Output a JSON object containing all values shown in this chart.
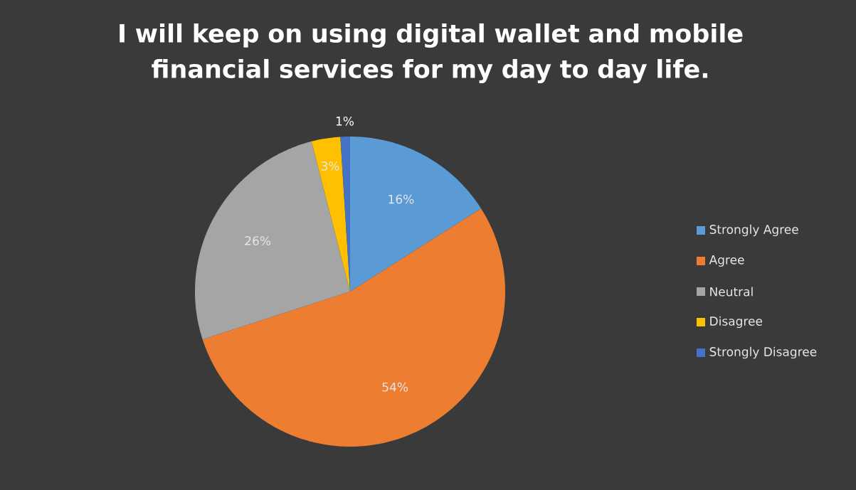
{
  "chart_data": {
    "type": "pie",
    "title": "I will keep on using digital wallet and mobile financial services for my day to day life.",
    "categories": [
      "Strongly Agree",
      "Agree",
      "Neutral",
      "Disagree",
      "Strongly Disagree"
    ],
    "values": [
      16,
      54,
      26,
      3,
      1
    ],
    "value_labels": [
      "16%",
      "54%",
      "26%",
      "3%",
      "1%"
    ],
    "colors": [
      "#5b9bd5",
      "#ed7d31",
      "#a5a5a5",
      "#ffc000",
      "#4472c4"
    ],
    "legend": "right"
  }
}
